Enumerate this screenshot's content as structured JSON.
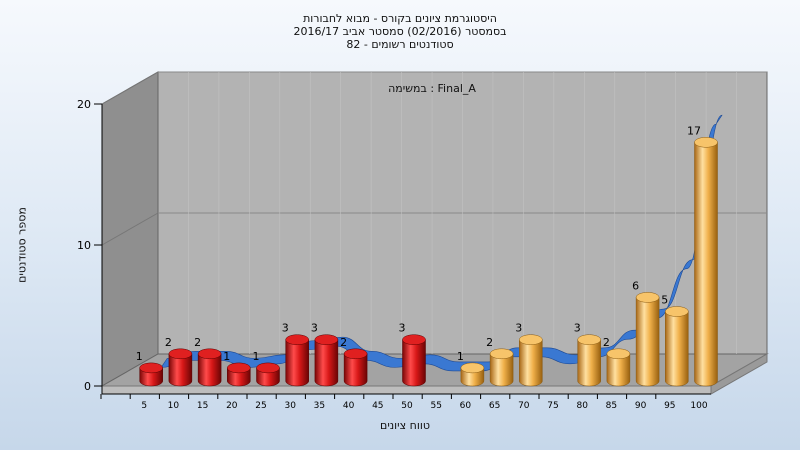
{
  "chart_data": {
    "type": "bar",
    "title_lines": [
      "היסטוגרמת ציונים בקורס - מבוא לחבורות",
      "בסמסטר  (02/2016)  סמסטר אביב 2016/17",
      "סטודנטים רשומים - 82"
    ],
    "annotation": "במשימה : Final_A",
    "xlabel": "טווח ציונים",
    "ylabel": "מספר סטודנטים",
    "ylim": [
      0,
      20
    ],
    "yticks": [
      0,
      10,
      20
    ],
    "categories": [
      "5",
      "10",
      "15",
      "20",
      "25",
      "30",
      "35",
      "40",
      "45",
      "50",
      "55",
      "60",
      "65",
      "70",
      "75",
      "80",
      "85",
      "90",
      "95",
      "100"
    ],
    "values": [
      1,
      2,
      2,
      1,
      1,
      3,
      3,
      2,
      null,
      3,
      null,
      1,
      2,
      3,
      null,
      3,
      2,
      6,
      5,
      17
    ],
    "colors": {
      "below_pass": "#cc1111",
      "pass": "#f0b04a",
      "curve": "#3a78d2",
      "curve_dark": "#6e6e6e",
      "wall": "#a9a9a9",
      "back_wall": "#b3b3b3",
      "side_wall": "#8f8f8f"
    },
    "pass_from_category": "60",
    "grid": true,
    "legend": "none",
    "chart_style": "3d"
  }
}
